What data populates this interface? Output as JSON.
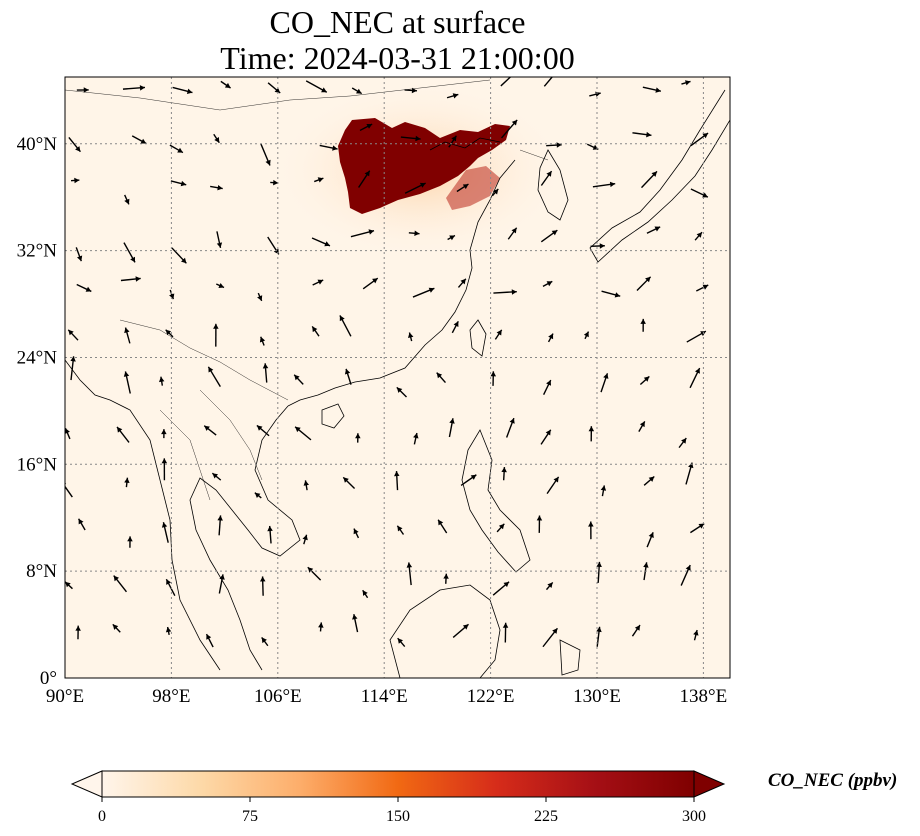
{
  "title": {
    "line1": "CO_NEC at surface",
    "line2": "Time: 2024-03-31 21:00:00"
  },
  "map": {
    "extent": {
      "lon": [
        90,
        140
      ],
      "lat": [
        0,
        45
      ]
    },
    "lon_ticks": [
      90,
      98,
      106,
      114,
      122,
      130,
      138
    ],
    "lon_tick_labels": [
      "90°E",
      "98°E",
      "106°E",
      "114°E",
      "122°E",
      "130°E",
      "138°E"
    ],
    "lat_ticks": [
      0,
      8,
      16,
      24,
      32,
      40
    ],
    "lat_tick_labels": [
      "0°",
      "8°N",
      "16°N",
      "24°N",
      "32°N",
      "40°N"
    ],
    "gridlines": true,
    "field_color_low": "#fff5e8",
    "plume_color": "#800000",
    "wind_vectors": true
  },
  "colorbar": {
    "label": "CO_NEC (ppbv)",
    "range": [
      0,
      300
    ],
    "ticks": [
      0,
      75,
      150,
      225,
      300
    ],
    "tick_labels": [
      "0",
      "75",
      "150",
      "225",
      "300"
    ],
    "colors": [
      "#fff5eb",
      "#fdd9a8",
      "#fdae6b",
      "#f16913",
      "#d62c1a",
      "#a50f15",
      "#7f0000"
    ],
    "extend": "both"
  }
}
